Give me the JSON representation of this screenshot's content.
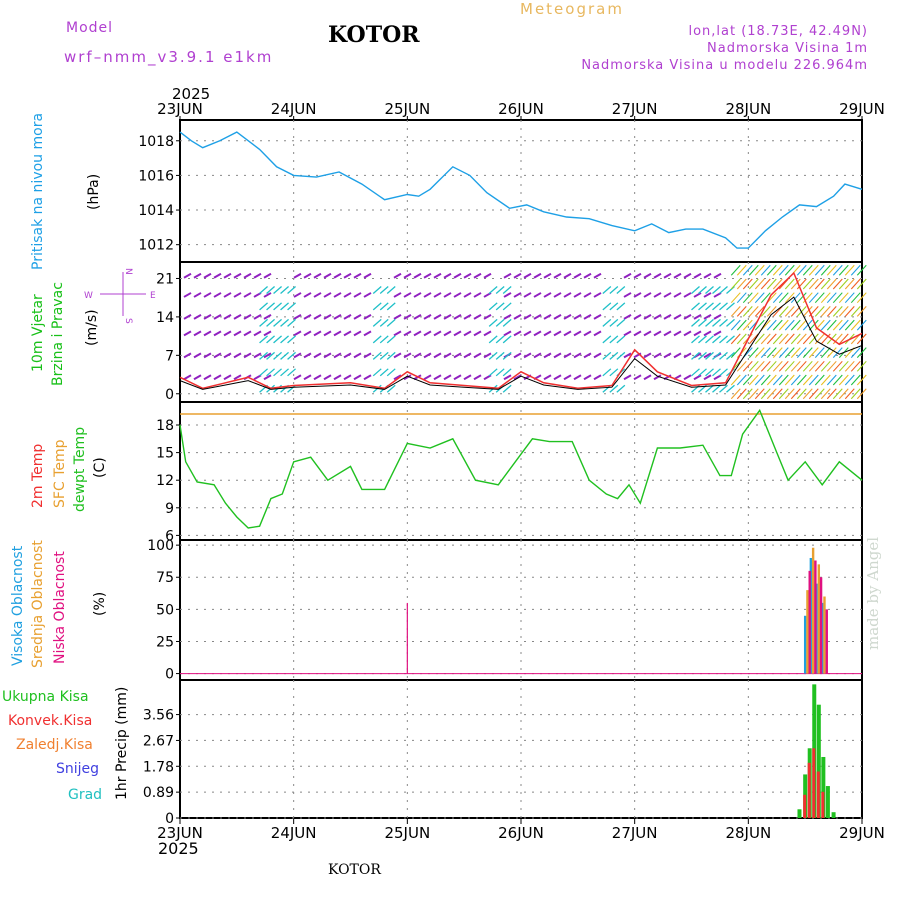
{
  "header": {
    "model_label": "Model",
    "model_run": "wrf–nmm_v3.9.1  e1km",
    "station": "KOTOR",
    "title": "Meteogram",
    "lonlat": "lon,lat (18.73E, 42.49N)",
    "elevation": "Nadmorska Visina 1m",
    "model_elevation": "Nadmorska Visina u modelu 226.964m"
  },
  "footer": {
    "station": "KOTOR",
    "credit": "made by Angel"
  },
  "time_axis": {
    "year": "2025",
    "ticks": [
      "23JUN",
      "24JUN",
      "25JUN",
      "26JUN",
      "27JUN",
      "28JUN",
      "29JUN"
    ]
  },
  "colors": {
    "pressure": "#1ea0e6",
    "wind_label_speed": "#18c018",
    "wind_label_dir": "#18c018",
    "temp_2m": "#f03030",
    "temp_sfc": "#e8a030",
    "dewpt": "#20c020",
    "cloud_high": "#20a0e0",
    "cloud_mid": "#e8a030",
    "cloud_low": "#e01080",
    "precip_total": "#20c020",
    "precip_conv": "#f03030",
    "precip_frz": "#f08030",
    "snow": "#4040e0",
    "graupel": "#20c0c0"
  },
  "panels": {
    "pressure": {
      "label": "Pritisak na nivou mora",
      "unit": "(hPa)"
    },
    "wind": {
      "label1": "10m Vjetar",
      "label2": "Brzina i Pravac",
      "unit": "(m/s)",
      "compass": {
        "n": "N",
        "s": "S",
        "w": "W",
        "e": "E"
      }
    },
    "temp": {
      "label_2m": "2m Temp",
      "label_sfc": "SFC Temp",
      "label_dew": "dewpt Temp",
      "unit": "(C)"
    },
    "cloud": {
      "label_high": "Visoka Oblacnost",
      "label_mid": "Srednja Oblacnost",
      "label_low": "Niska Oblacnost",
      "unit": "(%)"
    },
    "precip": {
      "label_total": "Ukupna Kisa",
      "label_conv": "Konvek.Kisa",
      "label_frz": "Zaledj.Kisa",
      "label_snow": "Snijeg",
      "label_grad": "Grad",
      "unit": "1hr Precip (mm)"
    }
  },
  "chart_data": [
    {
      "type": "line",
      "title": "",
      "ylabel": "(hPa)",
      "ylim": [
        1011,
        1019.2
      ],
      "yticks": [
        "1012",
        "1014",
        "1016",
        "1018"
      ],
      "x_day": [
        0,
        0.1,
        0.2,
        0.35,
        0.5,
        0.7,
        0.85,
        1.0,
        1.2,
        1.4,
        1.6,
        1.8,
        2.0,
        2.1,
        2.2,
        2.4,
        2.55,
        2.7,
        2.9,
        3.05,
        3.2,
        3.4,
        3.6,
        3.8,
        4.0,
        4.15,
        4.3,
        4.45,
        4.6,
        4.8,
        4.9,
        5.0,
        5.15,
        5.3,
        5.45,
        5.6,
        5.75,
        5.85,
        6.0
      ],
      "values": [
        1018.5,
        1018.0,
        1017.6,
        1018.0,
        1018.5,
        1017.5,
        1016.5,
        1016.0,
        1015.9,
        1016.2,
        1015.5,
        1014.6,
        1014.9,
        1014.8,
        1015.2,
        1016.5,
        1016.0,
        1015.0,
        1014.1,
        1014.3,
        1013.9,
        1013.6,
        1013.5,
        1013.1,
        1012.8,
        1013.2,
        1012.7,
        1012.9,
        1012.9,
        1012.4,
        1011.8,
        1011.8,
        1012.8,
        1013.6,
        1014.3,
        1014.2,
        1014.8,
        1015.5,
        1015.2
      ]
    },
    {
      "type": "line",
      "title": "",
      "ylabel": "(m/s)",
      "ylim": [
        -1.5,
        24
      ],
      "yticks": [
        "0",
        "7",
        "14",
        "21"
      ],
      "series": [
        {
          "name": "",
          "x_day": [
            0,
            0.2,
            0.4,
            0.6,
            0.8,
            1.0,
            1.5,
            1.8,
            2.0,
            2.2,
            2.5,
            2.8,
            3.0,
            3.2,
            3.5,
            3.8,
            4.0,
            4.2,
            4.5,
            4.8,
            5.0,
            5.2,
            5.4,
            5.6,
            5.8,
            6.0
          ],
          "values": [
            3,
            1,
            2,
            3,
            1,
            1.5,
            2,
            1,
            4,
            2,
            1.5,
            1,
            4,
            2,
            1,
            1.5,
            8,
            4,
            1.5,
            2,
            10,
            18,
            22,
            12,
            9,
            11
          ]
        }
      ]
    },
    {
      "type": "line",
      "title": "",
      "ylabel": "(C)",
      "ylim": [
        5.5,
        20.5
      ],
      "yticks": [
        "6",
        "9",
        "12",
        "15",
        "18"
      ],
      "series": [
        {
          "name": "SFC Temp",
          "x_day": [
            0,
            6
          ],
          "values": [
            19.2,
            19.2
          ]
        },
        {
          "name": "dewpt Temp",
          "x_day": [
            0,
            0.05,
            0.15,
            0.3,
            0.4,
            0.5,
            0.6,
            0.7,
            0.8,
            0.9,
            1.0,
            1.15,
            1.3,
            1.5,
            1.6,
            1.8,
            2.0,
            2.2,
            2.4,
            2.6,
            2.8,
            2.95,
            3.1,
            3.25,
            3.45,
            3.6,
            3.75,
            3.85,
            3.95,
            4.05,
            4.2,
            4.4,
            4.6,
            4.75,
            4.85,
            4.95,
            5.1,
            5.25,
            5.35,
            5.5,
            5.65,
            5.8,
            6.0
          ],
          "values": [
            18.0,
            14.0,
            11.8,
            11.5,
            9.5,
            8.0,
            6.8,
            7.0,
            10.0,
            10.5,
            14.0,
            14.5,
            12.0,
            13.5,
            11.0,
            11.0,
            16.0,
            15.5,
            16.5,
            12.0,
            11.5,
            14.0,
            16.5,
            16.2,
            16.2,
            12.0,
            10.5,
            10.0,
            11.5,
            9.5,
            15.5,
            15.5,
            15.8,
            12.5,
            12.5,
            17.0,
            19.6,
            15.0,
            12.0,
            14.0,
            11.5,
            14.0,
            12.0
          ]
        }
      ]
    },
    {
      "type": "bar",
      "title": "",
      "ylabel": "(%)",
      "ylim": [
        -5,
        104
      ],
      "yticks": [
        "0",
        "25",
        "50",
        "75",
        "100"
      ],
      "series": [
        {
          "name": "Visoka Oblacnost",
          "x_day": [
            5.5,
            5.55,
            5.6,
            5.65
          ],
          "values": [
            45,
            90,
            70,
            55
          ]
        },
        {
          "name": "Srednja Oblacnost",
          "x_day": [
            5.52,
            5.57,
            5.62,
            5.67
          ],
          "values": [
            65,
            98,
            85,
            60
          ]
        },
        {
          "name": "Niska Oblacnost",
          "x_day": [
            2.0,
            5.54,
            5.59,
            5.64,
            5.69
          ],
          "values": [
            55,
            80,
            88,
            75,
            50
          ]
        }
      ]
    },
    {
      "type": "bar",
      "title": "",
      "ylabel": "1hr Precip (mm)",
      "ylim": [
        0,
        4.75
      ],
      "yticks": [
        "0",
        "0.89",
        "1.78",
        "2.67",
        "3.56"
      ],
      "series": [
        {
          "name": "Ukupna Kisa",
          "x_day": [
            5.45,
            5.5,
            5.54,
            5.58,
            5.62,
            5.66,
            5.7,
            5.75
          ],
          "values": [
            0.3,
            1.5,
            2.4,
            4.6,
            3.9,
            2.1,
            1.1,
            0.2
          ]
        },
        {
          "name": "Konvek.Kisa",
          "x_day": [
            5.5,
            5.54,
            5.58,
            5.62,
            5.66
          ],
          "values": [
            0.8,
            1.9,
            2.4,
            1.6,
            0.9
          ]
        }
      ]
    }
  ]
}
